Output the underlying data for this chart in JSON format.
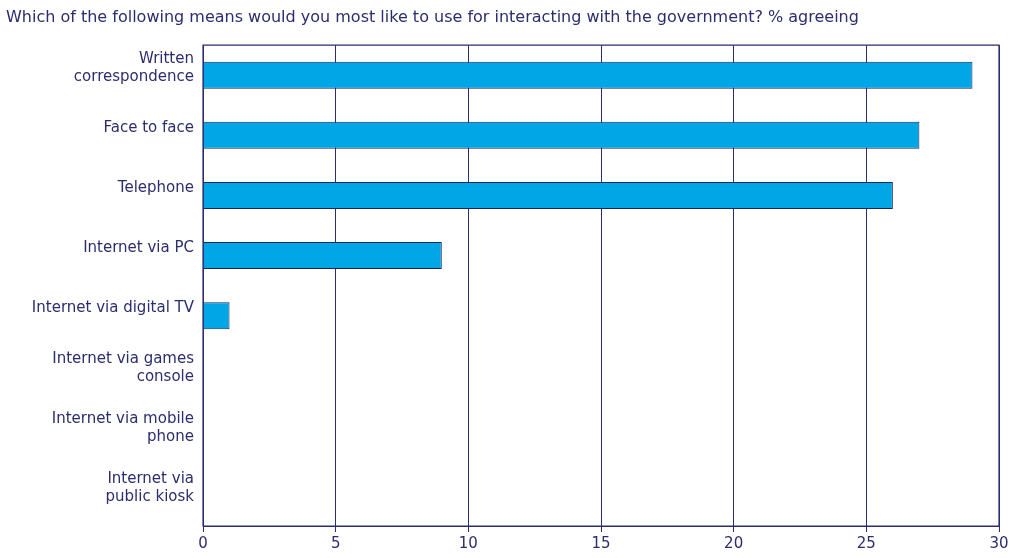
{
  "chart_data": {
    "type": "bar",
    "orientation": "horizontal",
    "title": "Which of the following means would you most like to use for interacting with the government? % agreeing",
    "categories": [
      "Written\ncorrespondence",
      "Face to face",
      "Telephone",
      "Internet via PC",
      "Internet via digital TV",
      "Internet via games\nconsole",
      "Internet via mobile\nphone",
      "Internet via\npublic kiosk"
    ],
    "values": [
      29,
      27,
      26,
      9,
      1,
      0,
      0,
      0
    ],
    "color": "#00a6e6",
    "xlim": [
      0,
      30
    ],
    "xticks": [
      0,
      5,
      10,
      15,
      20,
      25,
      30
    ],
    "grid": "x",
    "legend": false
  }
}
